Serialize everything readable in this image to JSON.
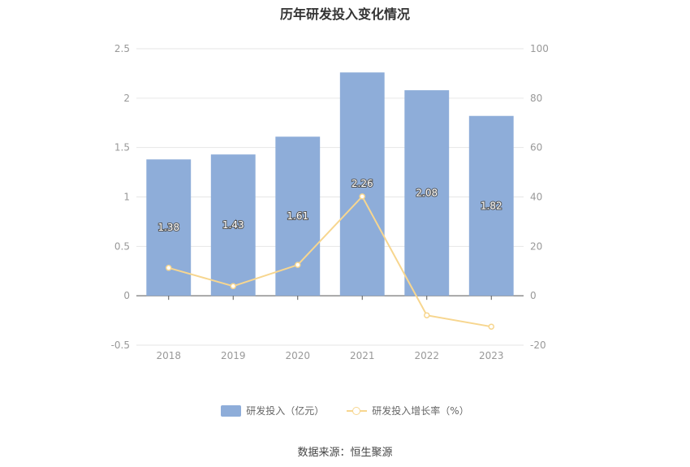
{
  "chart_data": {
    "type": "bar",
    "title": "历年研发投入变化情况",
    "categories": [
      "2018",
      "2019",
      "2020",
      "2021",
      "2022",
      "2023"
    ],
    "series": [
      {
        "name": "研发投入（亿元）",
        "type": "bar",
        "axis": "left",
        "values": [
          1.38,
          1.43,
          1.61,
          2.26,
          2.08,
          1.82
        ],
        "labels": [
          "1.38",
          "1.43",
          "1.61",
          "2.26",
          "2.08",
          "1.82"
        ]
      },
      {
        "name": "研发投入增长率（%）",
        "type": "line",
        "axis": "right",
        "values": [
          11.3,
          3.9,
          12.5,
          40.2,
          -7.9,
          -12.5
        ]
      }
    ],
    "yaxis_left": {
      "ylim": [
        -0.5,
        2.5
      ],
      "ticks": [
        "2.5",
        "2",
        "1.5",
        "1",
        "0.5",
        "0",
        "-0.5"
      ]
    },
    "yaxis_right": {
      "ylim": [
        -20,
        100
      ],
      "ticks": [
        "100",
        "80",
        "60",
        "40",
        "20",
        "0",
        "-20"
      ]
    },
    "grid": true,
    "legend_position": "bottom",
    "colors": {
      "bar": "#8eadd9",
      "line": "#f7d68f",
      "grid": "#e6e6e6",
      "axis": "#555555"
    }
  },
  "source_text": "数据来源：恒生聚源"
}
